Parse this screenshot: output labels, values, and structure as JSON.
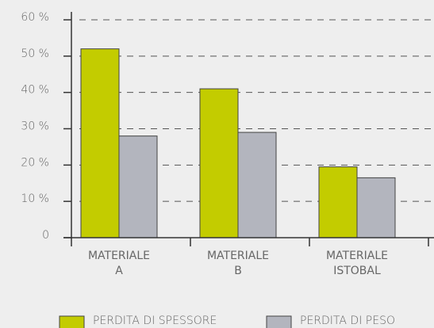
{
  "chart_data": {
    "type": "bar",
    "categories": [
      "MATERIALE A",
      "MATERIALE B",
      "MATERIALE ISTOBAL"
    ],
    "series": [
      {
        "name": "PERDITA DI SPESSORE",
        "color": "#c3cc00",
        "values": [
          52,
          41,
          19.5
        ]
      },
      {
        "name": "PERDITA DI PESO",
        "color": "#b3b5be",
        "values": [
          28,
          29,
          16.5
        ]
      }
    ],
    "ylim": [
      0,
      60
    ],
    "yticks": [
      0,
      {
        "value": 10,
        "label": "10 %"
      },
      {
        "value": 20,
        "label": "20 %"
      },
      {
        "value": 30,
        "label": "30 %"
      },
      {
        "value": 40,
        "label": "40 %"
      },
      {
        "value": 50,
        "label": "50 %"
      },
      {
        "value": 60,
        "label": "60 %"
      }
    ],
    "grid": true
  }
}
